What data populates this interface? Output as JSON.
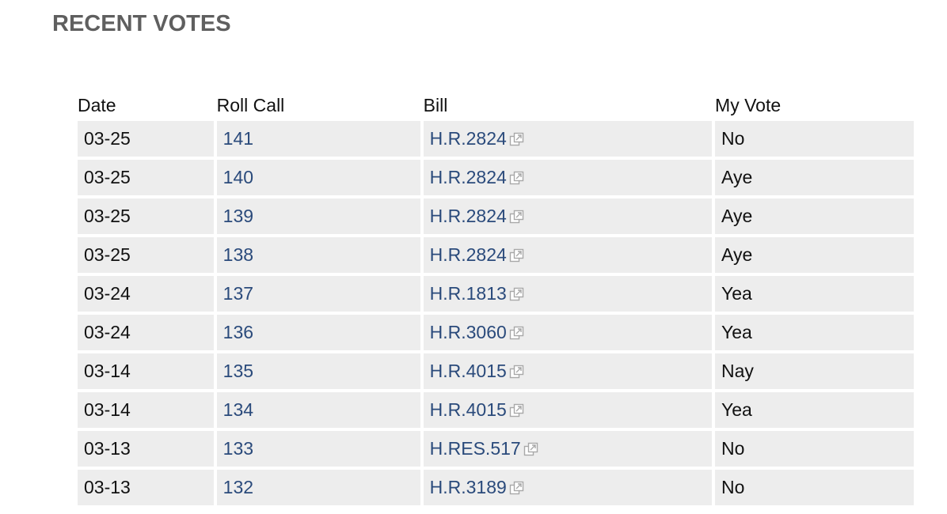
{
  "page": {
    "title": "RECENT VOTES"
  },
  "table": {
    "headers": [
      "Date",
      "Roll Call",
      "Bill",
      "My Vote"
    ],
    "rows": [
      {
        "date": "03-25",
        "roll_call": "141",
        "bill": "H.R.2824",
        "vote": "No"
      },
      {
        "date": "03-25",
        "roll_call": "140",
        "bill": "H.R.2824",
        "vote": "Aye"
      },
      {
        "date": "03-25",
        "roll_call": "139",
        "bill": "H.R.2824",
        "vote": "Aye"
      },
      {
        "date": "03-25",
        "roll_call": "138",
        "bill": "H.R.2824",
        "vote": "Aye"
      },
      {
        "date": "03-24",
        "roll_call": "137",
        "bill": "H.R.1813",
        "vote": "Yea"
      },
      {
        "date": "03-24",
        "roll_call": "136",
        "bill": "H.R.3060",
        "vote": "Yea"
      },
      {
        "date": "03-14",
        "roll_call": "135",
        "bill": "H.R.4015",
        "vote": "Nay"
      },
      {
        "date": "03-14",
        "roll_call": "134",
        "bill": "H.R.4015",
        "vote": "Yea"
      },
      {
        "date": "03-13",
        "roll_call": "133",
        "bill": "H.RES.517",
        "vote": "No"
      },
      {
        "date": "03-13",
        "roll_call": "132",
        "bill": "H.R.3189",
        "vote": "No"
      }
    ]
  },
  "icons": {
    "external_link": "external-link-icon"
  },
  "colors": {
    "heading": "#5f5f5f",
    "link": "#2a4a7b",
    "cell_background": "#ededed"
  }
}
